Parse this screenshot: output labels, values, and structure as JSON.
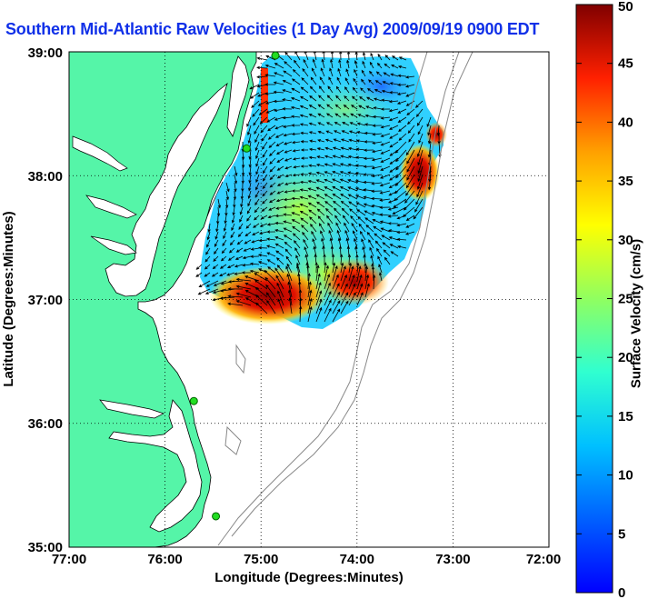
{
  "title": "Southern Mid-Atlantic Raw Velocities (1 Day Avg) 2009/09/19 0900 EDT",
  "map": {
    "x_axis_label": "Longitude (Degrees:Minutes)",
    "y_axis_label": "Latitude (Degrees:Minutes)",
    "x_ticks": [
      "77:00",
      "76:00",
      "75:00",
      "74:00",
      "73:00",
      "72:00"
    ],
    "y_ticks": [
      "39:00",
      "38:00",
      "37:00",
      "36:00",
      "35:00"
    ],
    "lon_range": [
      -77,
      -72
    ],
    "lat_range": [
      35,
      39
    ],
    "land_color": "#55f5a8",
    "grid": "dotted"
  },
  "colorbar": {
    "label": "Surface Velocity (cm/s)",
    "min": 0,
    "max": 50,
    "ticks": [
      "0",
      "5",
      "10",
      "15",
      "20",
      "25",
      "30",
      "35",
      "40",
      "45",
      "50"
    ],
    "colormap": "jet"
  },
  "stations": [
    {
      "lon": -74.85,
      "lat": 38.97
    },
    {
      "lon": -75.15,
      "lat": 38.22
    },
    {
      "lon": -75.7,
      "lat": 36.18
    },
    {
      "lon": -75.47,
      "lat": 35.25
    }
  ]
}
